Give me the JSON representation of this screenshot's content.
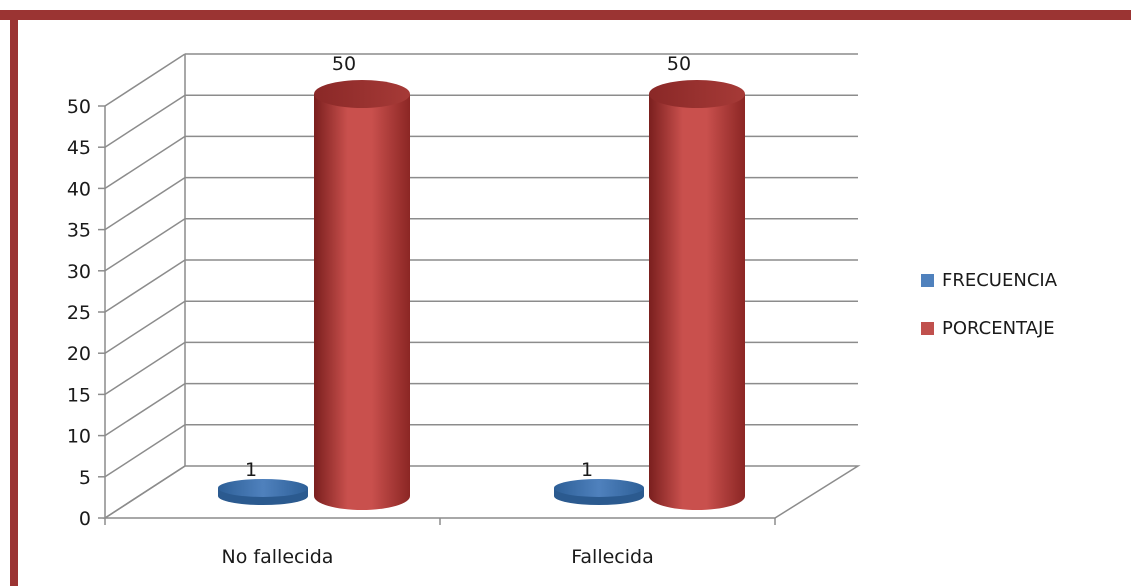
{
  "chart_data": {
    "type": "bar",
    "style": "3d-cylinder",
    "categories": [
      "No fallecida",
      "Fallecida"
    ],
    "series": [
      {
        "name": "FRECUENCIA",
        "values": [
          1,
          1
        ],
        "color": "#4f81bd"
      },
      {
        "name": "PORCENTAJE",
        "values": [
          50,
          50
        ],
        "color": "#c0504d"
      }
    ],
    "yticks": [
      "0",
      "5",
      "10",
      "15",
      "20",
      "25",
      "30",
      "35",
      "40",
      "45",
      "50"
    ],
    "ylim": [
      0,
      50
    ],
    "data_labels": [
      [
        "1",
        "1"
      ],
      [
        "50",
        "50"
      ]
    ],
    "grid": true,
    "legend_position": "right",
    "title": "",
    "xlabel": "",
    "ylabel": ""
  },
  "frame_color": "#9b3433"
}
